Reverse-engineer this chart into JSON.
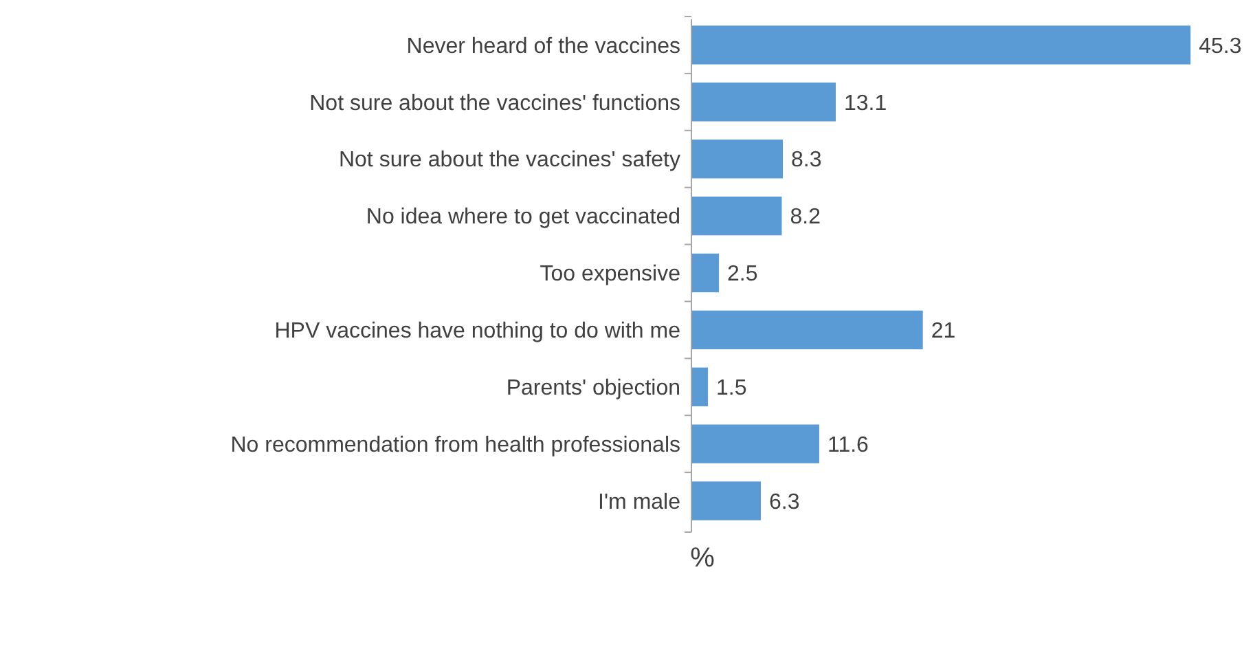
{
  "chart_data": {
    "type": "bar",
    "orientation": "horizontal",
    "xlabel": "%",
    "categories": [
      "Never heard of the vaccines",
      "Not sure about the vaccines' functions",
      "Not sure about the vaccines' safety",
      "No idea where to get vaccinated",
      "Too expensive",
      "HPV vaccines have nothing to do with me",
      "Parents' objection",
      "No recommendation from health professionals",
      "I'm male"
    ],
    "values": [
      45.3,
      13.1,
      8.3,
      8.2,
      2.5,
      21,
      1.5,
      11.6,
      6.3
    ],
    "color": "#5b9bd5",
    "data_labels": true
  }
}
